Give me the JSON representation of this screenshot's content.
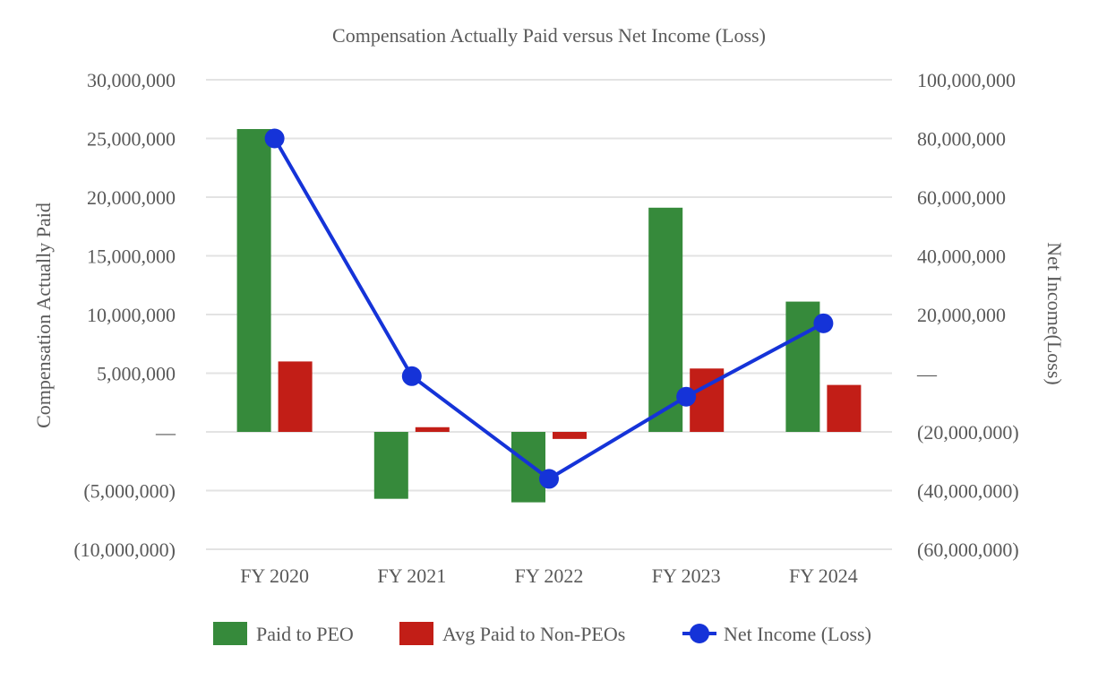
{
  "chart_data": {
    "type": "bar",
    "title": "Compensation Actually Paid versus Net Income (Loss)",
    "categories": [
      "FY 2020",
      "FY 2021",
      "FY 2022",
      "FY 2023",
      "FY 2024"
    ],
    "y_left": {
      "label": "Compensation Actually Paid",
      "range": [
        -10000000,
        30000000
      ],
      "ticks": [
        30000000,
        25000000,
        20000000,
        15000000,
        10000000,
        5000000,
        0,
        -5000000,
        -10000000
      ],
      "tick_labels": [
        "30,000,000",
        "25,000,000",
        "20,000,000",
        "15,000,000",
        "10,000,000",
        "5,000,000",
        "—",
        "(5,000,000)",
        "(10,000,000)"
      ]
    },
    "y_right": {
      "label": "Net Income(Loss)",
      "range": [
        -60000000,
        100000000
      ],
      "ticks": [
        100000000,
        80000000,
        60000000,
        40000000,
        20000000,
        0,
        -20000000,
        -40000000,
        -60000000
      ],
      "tick_labels": [
        "100,000,000",
        "80,000,000",
        "60,000,000",
        "40,000,000",
        "20,000,000",
        "—",
        "(20,000,000)",
        "(40,000,000)",
        "(60,000,000)"
      ]
    },
    "grid": true,
    "legend_position": "bottom",
    "series": [
      {
        "name": "Paid to PEO",
        "kind": "bar",
        "axis": "left",
        "color": "#368a3b",
        "values": [
          25800000,
          -5700000,
          -6000000,
          19100000,
          11100000
        ]
      },
      {
        "name": "Avg Paid to Non-PEOs",
        "kind": "bar",
        "axis": "left",
        "color": "#c21e17",
        "values": [
          6000000,
          400000,
          -600000,
          5400000,
          4000000
        ]
      },
      {
        "name": "Net Income (Loss)",
        "kind": "line",
        "axis": "right",
        "color": "#1533d8",
        "values": [
          80000000,
          -1000000,
          -36000000,
          -8000000,
          17000000
        ]
      }
    ]
  }
}
